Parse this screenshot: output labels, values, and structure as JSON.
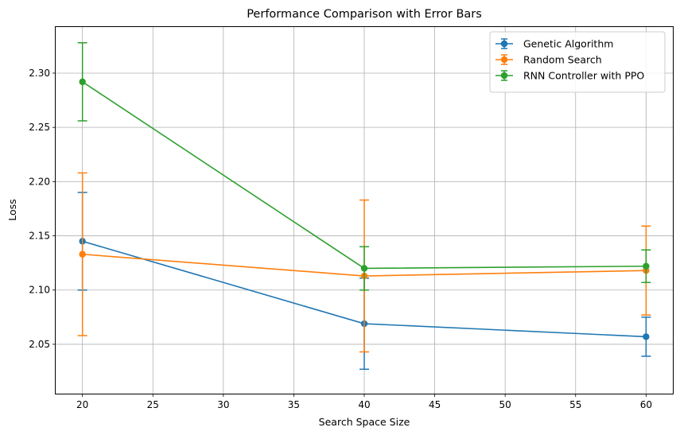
{
  "chart_data": {
    "type": "line",
    "title": "Performance Comparison with Error Bars",
    "xlabel": "Search Space Size",
    "ylabel": "Loss",
    "xlim": [
      18.1,
      61.9
    ],
    "ylim": [
      2.0045,
      2.3425
    ],
    "xticks": [
      20,
      25,
      30,
      35,
      40,
      45,
      50,
      55,
      60
    ],
    "yticks": [
      2.05,
      2.1,
      2.15,
      2.2,
      2.25,
      2.3
    ],
    "ytick_labels": [
      "2.05",
      "2.10",
      "2.15",
      "2.20",
      "2.25",
      "2.30"
    ],
    "grid": true,
    "legend_position": "top-right",
    "x": [
      20,
      40,
      60
    ],
    "series": [
      {
        "name": "Genetic Algorithm",
        "color": "#1f77b4",
        "values": [
          2.145,
          2.069,
          2.057
        ],
        "errors": [
          0.045,
          0.042,
          0.018
        ]
      },
      {
        "name": "Random Search",
        "color": "#ff7f0e",
        "values": [
          2.133,
          2.113,
          2.118
        ],
        "errors": [
          0.075,
          0.07,
          0.041
        ]
      },
      {
        "name": "RNN Controller with PPO",
        "color": "#2ca02c",
        "values": [
          2.292,
          2.12,
          2.122
        ],
        "errors": [
          0.036,
          0.02,
          0.015
        ]
      }
    ]
  }
}
